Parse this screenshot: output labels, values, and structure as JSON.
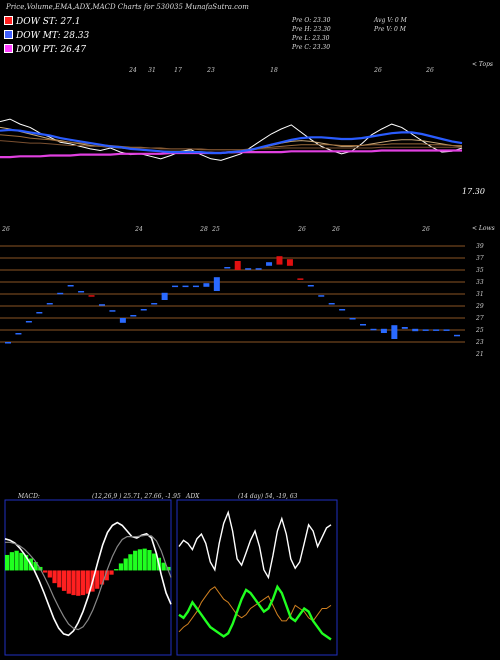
{
  "header": {
    "title": "Price,Volume,EMA,ADX,MACD Charts for 530035 MunafaSutra.com"
  },
  "dow_levels": [
    {
      "label": "DOW ST: 27.1",
      "color": "#ff2020"
    },
    {
      "label": "DOW MT: 28.33",
      "color": "#4060ff"
    },
    {
      "label": "DOW PT: 26.47",
      "color": "#ff40ff"
    }
  ],
  "stats": {
    "open": "Pre O: 23.30",
    "high": "Pre H: 23.30",
    "low": "Pre L: 23.30",
    "close": "Pre C: 23.30",
    "avg_volume": "Avg V: 0 M",
    "prev_volume": "Pre V: 0 M"
  },
  "labels": {
    "top_right": "< Tops",
    "lows_right": "< Lows",
    "price_mark": "17.30"
  },
  "colors": {
    "ema_blue": "#2a5cff",
    "ema_magenta": "#e040e0",
    "ema_brown": "#9a6a3a",
    "ema_tan": "#c8a878",
    "price_white": "#ffffff",
    "candle_up": "#2a6aff",
    "candle_down": "#e01010",
    "grid_line": "#b87030",
    "macd_green": "#20ff20",
    "macd_red": "#ff2020",
    "adx_orange": "#d08020",
    "adx_green": "#20ff20",
    "panel_border": "#2030c0"
  },
  "chart_data": [
    {
      "type": "line",
      "title": "Price / EMA",
      "top_tick_labels": [
        "24",
        "31",
        "17",
        "23",
        "18",
        "26",
        "26"
      ],
      "series": [
        {
          "key": "price",
          "values": [
            26.5,
            26.8,
            26.2,
            25.8,
            25.1,
            24.6,
            24.0,
            23.8,
            23.5,
            23.2,
            23.0,
            23.3,
            22.8,
            22.5,
            22.6,
            22.3,
            22.0,
            22.4,
            22.9,
            23.1,
            22.5,
            22.0,
            21.8,
            22.2,
            22.6,
            23.4,
            24.2,
            25.0,
            25.6,
            26.1,
            25.2,
            24.3,
            23.5,
            23.0,
            22.6,
            22.9,
            23.8,
            24.9,
            25.6,
            26.2,
            25.8,
            25.0,
            24.2,
            23.4,
            22.8,
            22.9,
            23.3
          ]
        },
        {
          "key": "ema_short",
          "values": [
            25.8,
            25.6,
            25.3,
            25.0,
            24.7,
            24.4,
            24.2,
            24.0,
            23.8,
            23.6,
            23.5,
            23.4,
            23.3,
            23.2,
            23.1,
            23.0,
            22.9,
            22.9,
            22.9,
            22.9,
            22.8,
            22.8,
            22.7,
            22.7,
            22.8,
            23.0,
            23.3,
            23.6,
            23.9,
            24.1,
            24.2,
            24.1,
            23.9,
            23.7,
            23.5,
            23.5,
            23.6,
            23.8,
            24.0,
            24.2,
            24.3,
            24.3,
            24.2,
            24.0,
            23.8,
            23.6,
            23.5
          ]
        },
        {
          "key": "ema_medium",
          "values": [
            24.9,
            24.8,
            24.7,
            24.5,
            24.4,
            24.3,
            24.1,
            24.0,
            23.9,
            23.8,
            23.7,
            23.6,
            23.5,
            23.4,
            23.4,
            23.3,
            23.3,
            23.2,
            23.2,
            23.2,
            23.1,
            23.1,
            23.1,
            23.1,
            23.1,
            23.2,
            23.3,
            23.4,
            23.5,
            23.6,
            23.7,
            23.7,
            23.7,
            23.7,
            23.6,
            23.6,
            23.6,
            23.7,
            23.7,
            23.8,
            23.8,
            23.8,
            23.8,
            23.7,
            23.7,
            23.6,
            23.6
          ]
        },
        {
          "key": "ema_long",
          "values": [
            24.2,
            24.1,
            24.0,
            23.9,
            23.9,
            23.8,
            23.7,
            23.6,
            23.6,
            23.5,
            23.5,
            23.4,
            23.4,
            23.3,
            23.3,
            23.3,
            23.2,
            23.2,
            23.2,
            23.2,
            23.2,
            23.1,
            23.1,
            23.1,
            23.1,
            23.1,
            23.2,
            23.2,
            23.3,
            23.3,
            23.3,
            23.3,
            23.3,
            23.3,
            23.3,
            23.3,
            23.3,
            23.3,
            23.4,
            23.4,
            23.4,
            23.4,
            23.4,
            23.4,
            23.4,
            23.4,
            23.4
          ]
        },
        {
          "key": "ema_magenta",
          "values": [
            22.2,
            22.2,
            22.3,
            22.3,
            22.3,
            22.4,
            22.4,
            22.4,
            22.5,
            22.5,
            22.5,
            22.5,
            22.6,
            22.6,
            22.6,
            22.6,
            22.6,
            22.7,
            22.7,
            22.7,
            22.7,
            22.7,
            22.7,
            22.8,
            22.8,
            22.8,
            22.8,
            22.8,
            22.8,
            22.9,
            22.9,
            22.9,
            22.9,
            22.9,
            22.9,
            22.9,
            22.9,
            22.9,
            23.0,
            23.0,
            23.0,
            23.0,
            23.0,
            23.0,
            23.0,
            23.0,
            23.0
          ]
        },
        {
          "key": "ema_blue",
          "values": [
            25.4,
            25.5,
            25.4,
            25.2,
            25.0,
            24.8,
            24.5,
            24.3,
            24.1,
            23.9,
            23.7,
            23.5,
            23.4,
            23.2,
            23.1,
            23.0,
            22.9,
            22.8,
            22.8,
            22.8,
            22.8,
            22.7,
            22.7,
            22.8,
            22.9,
            23.1,
            23.4,
            23.7,
            24.0,
            24.3,
            24.5,
            24.6,
            24.6,
            24.5,
            24.4,
            24.4,
            24.5,
            24.7,
            24.9,
            25.1,
            25.2,
            25.2,
            25.0,
            24.7,
            24.4,
            24.1,
            23.9
          ]
        }
      ],
      "ylim": [
        17,
        33
      ]
    },
    {
      "type": "bar",
      "title": "Price bars",
      "tick_labels_top": [
        "26",
        "24",
        "28",
        "25",
        "26",
        "26",
        "26"
      ],
      "y_ticks": [
        39,
        37,
        35,
        33,
        31,
        29,
        27,
        25,
        23,
        21
      ],
      "ylim": [
        21,
        39
      ],
      "candles": [
        {
          "i": 0,
          "o": 23.0,
          "c": 23.0,
          "dir": "up"
        },
        {
          "i": 1,
          "o": 24.5,
          "c": 24.5,
          "dir": "up"
        },
        {
          "i": 2,
          "o": 26.5,
          "c": 26.5,
          "dir": "up"
        },
        {
          "i": 3,
          "o": 28.0,
          "c": 28.0,
          "dir": "up"
        },
        {
          "i": 4,
          "o": 29.5,
          "c": 29.5,
          "dir": "up"
        },
        {
          "i": 5,
          "o": 31.2,
          "c": 31.2,
          "dir": "up"
        },
        {
          "i": 6,
          "o": 32.5,
          "c": 32.5,
          "dir": "up"
        },
        {
          "i": 7,
          "o": 31.5,
          "c": 31.5,
          "dir": "up"
        },
        {
          "i": 8,
          "o": 30.8,
          "c": 30.8,
          "dir": "down"
        },
        {
          "i": 9,
          "o": 29.3,
          "c": 29.3,
          "dir": "up"
        },
        {
          "i": 10,
          "o": 28.3,
          "c": 28.3,
          "dir": "up"
        },
        {
          "i": 11,
          "o": 27.0,
          "c": 26.2,
          "dir": "up"
        },
        {
          "i": 12,
          "o": 27.5,
          "c": 27.5,
          "dir": "up"
        },
        {
          "i": 13,
          "o": 28.5,
          "c": 28.5,
          "dir": "up"
        },
        {
          "i": 14,
          "o": 29.5,
          "c": 29.5,
          "dir": "up"
        },
        {
          "i": 15,
          "o": 31.2,
          "c": 30.0,
          "dir": "up"
        },
        {
          "i": 16,
          "o": 32.4,
          "c": 32.4,
          "dir": "up"
        },
        {
          "i": 17,
          "o": 32.4,
          "c": 32.4,
          "dir": "up"
        },
        {
          "i": 18,
          "o": 32.4,
          "c": 32.4,
          "dir": "up"
        },
        {
          "i": 19,
          "o": 32.8,
          "c": 32.2,
          "dir": "up"
        },
        {
          "i": 20,
          "o": 33.8,
          "c": 31.5,
          "dir": "up"
        },
        {
          "i": 21,
          "o": 35.5,
          "c": 35.5,
          "dir": "up"
        },
        {
          "i": 22,
          "o": 36.5,
          "c": 35.0,
          "dir": "down"
        },
        {
          "i": 23,
          "o": 35.3,
          "c": 35.3,
          "dir": "up"
        },
        {
          "i": 24,
          "o": 35.3,
          "c": 35.3,
          "dir": "up"
        },
        {
          "i": 25,
          "o": 36.3,
          "c": 35.7,
          "dir": "up"
        },
        {
          "i": 26,
          "o": 37.3,
          "c": 35.9,
          "dir": "down"
        },
        {
          "i": 27,
          "o": 36.8,
          "c": 35.7,
          "dir": "down"
        },
        {
          "i": 28,
          "o": 33.6,
          "c": 33.6,
          "dir": "down"
        },
        {
          "i": 29,
          "o": 32.5,
          "c": 32.5,
          "dir": "up"
        },
        {
          "i": 30,
          "o": 30.8,
          "c": 30.8,
          "dir": "up"
        },
        {
          "i": 31,
          "o": 29.5,
          "c": 29.5,
          "dir": "up"
        },
        {
          "i": 32,
          "o": 28.5,
          "c": 28.5,
          "dir": "up"
        },
        {
          "i": 33,
          "o": 27.0,
          "c": 27.0,
          "dir": "up"
        },
        {
          "i": 34,
          "o": 26.0,
          "c": 26.0,
          "dir": "up"
        },
        {
          "i": 35,
          "o": 25.2,
          "c": 25.2,
          "dir": "up"
        },
        {
          "i": 36,
          "o": 25.2,
          "c": 24.5,
          "dir": "up"
        },
        {
          "i": 37,
          "o": 25.8,
          "c": 23.5,
          "dir": "up"
        },
        {
          "i": 38,
          "o": 25.5,
          "c": 25.2,
          "dir": "up"
        },
        {
          "i": 39,
          "o": 25.2,
          "c": 24.8,
          "dir": "up"
        },
        {
          "i": 40,
          "o": 25.1,
          "c": 25.1,
          "dir": "up"
        },
        {
          "i": 41,
          "o": 25.1,
          "c": 25.1,
          "dir": "up"
        },
        {
          "i": 42,
          "o": 25.1,
          "c": 25.1,
          "dir": "up"
        },
        {
          "i": 43,
          "o": 24.2,
          "c": 24.2,
          "dir": "up"
        }
      ]
    },
    {
      "type": "bar",
      "title": "MACD",
      "label": "MACD:",
      "params": "(12,26,9 ) 25.71, 27.66, -1.95",
      "histogram": [
        2.2,
        2.6,
        2.8,
        2.5,
        2.2,
        1.7,
        1.2,
        0.5,
        -0.3,
        -1.0,
        -1.8,
        -2.4,
        -2.9,
        -3.3,
        -3.5,
        -3.6,
        -3.5,
        -3.3,
        -3.0,
        -2.6,
        -2.0,
        -1.4,
        -0.6,
        0.2,
        1.0,
        1.7,
        2.3,
        2.8,
        3.0,
        3.1,
        2.9,
        2.4,
        1.8,
        1.1,
        0.5
      ],
      "macd": [
        4.5,
        4.3,
        3.9,
        3.2,
        2.3,
        1.2,
        0.0,
        -1.5,
        -3.2,
        -5.0,
        -6.8,
        -8.2,
        -9.0,
        -9.2,
        -8.6,
        -7.4,
        -5.8,
        -3.8,
        -1.4,
        1.2,
        3.6,
        5.4,
        6.4,
        6.8,
        6.4,
        5.6,
        4.8,
        4.6,
        5.0,
        5.2,
        4.6,
        2.4,
        -0.6,
        -3.2,
        -4.8
      ],
      "signal": [
        4.0,
        4.0,
        3.8,
        3.5,
        3.0,
        2.3,
        1.5,
        0.5,
        -0.8,
        -2.2,
        -3.8,
        -5.2,
        -6.5,
        -7.6,
        -8.2,
        -8.4,
        -8.0,
        -7.0,
        -5.6,
        -3.8,
        -1.8,
        0.2,
        2.0,
        3.4,
        4.4,
        4.8,
        4.8,
        4.8,
        4.9,
        5.0,
        4.9,
        4.2,
        2.8,
        0.8,
        -1.0
      ],
      "ylim": [
        -12,
        10
      ]
    },
    {
      "type": "line",
      "title": "ADX",
      "label": "ADX",
      "params": "(14 day) 54, -19, 63",
      "series": [
        {
          "key": "adx_white",
          "values": [
            70,
            74,
            72,
            68,
            75,
            78,
            72,
            60,
            55,
            72,
            85,
            92,
            80,
            62,
            58,
            66,
            74,
            80,
            70,
            55,
            50,
            64,
            80,
            88,
            78,
            62,
            56,
            60,
            72,
            84,
            80,
            70,
            76,
            82,
            84
          ]
        },
        {
          "key": "di_plus_orange",
          "values": [
            15,
            18,
            20,
            24,
            28,
            34,
            38,
            42,
            44,
            40,
            36,
            34,
            30,
            26,
            24,
            26,
            30,
            32,
            34,
            36,
            38,
            32,
            26,
            22,
            22,
            26,
            32,
            30,
            28,
            24,
            22,
            26,
            30,
            30,
            32
          ]
        },
        {
          "key": "di_minus_green",
          "values": [
            26,
            24,
            28,
            34,
            30,
            26,
            22,
            18,
            16,
            14,
            12,
            14,
            20,
            28,
            36,
            42,
            40,
            36,
            32,
            28,
            30,
            36,
            44,
            40,
            32,
            24,
            22,
            26,
            30,
            28,
            22,
            18,
            14,
            12,
            10
          ]
        }
      ],
      "ylim": [
        0,
        100
      ]
    }
  ]
}
